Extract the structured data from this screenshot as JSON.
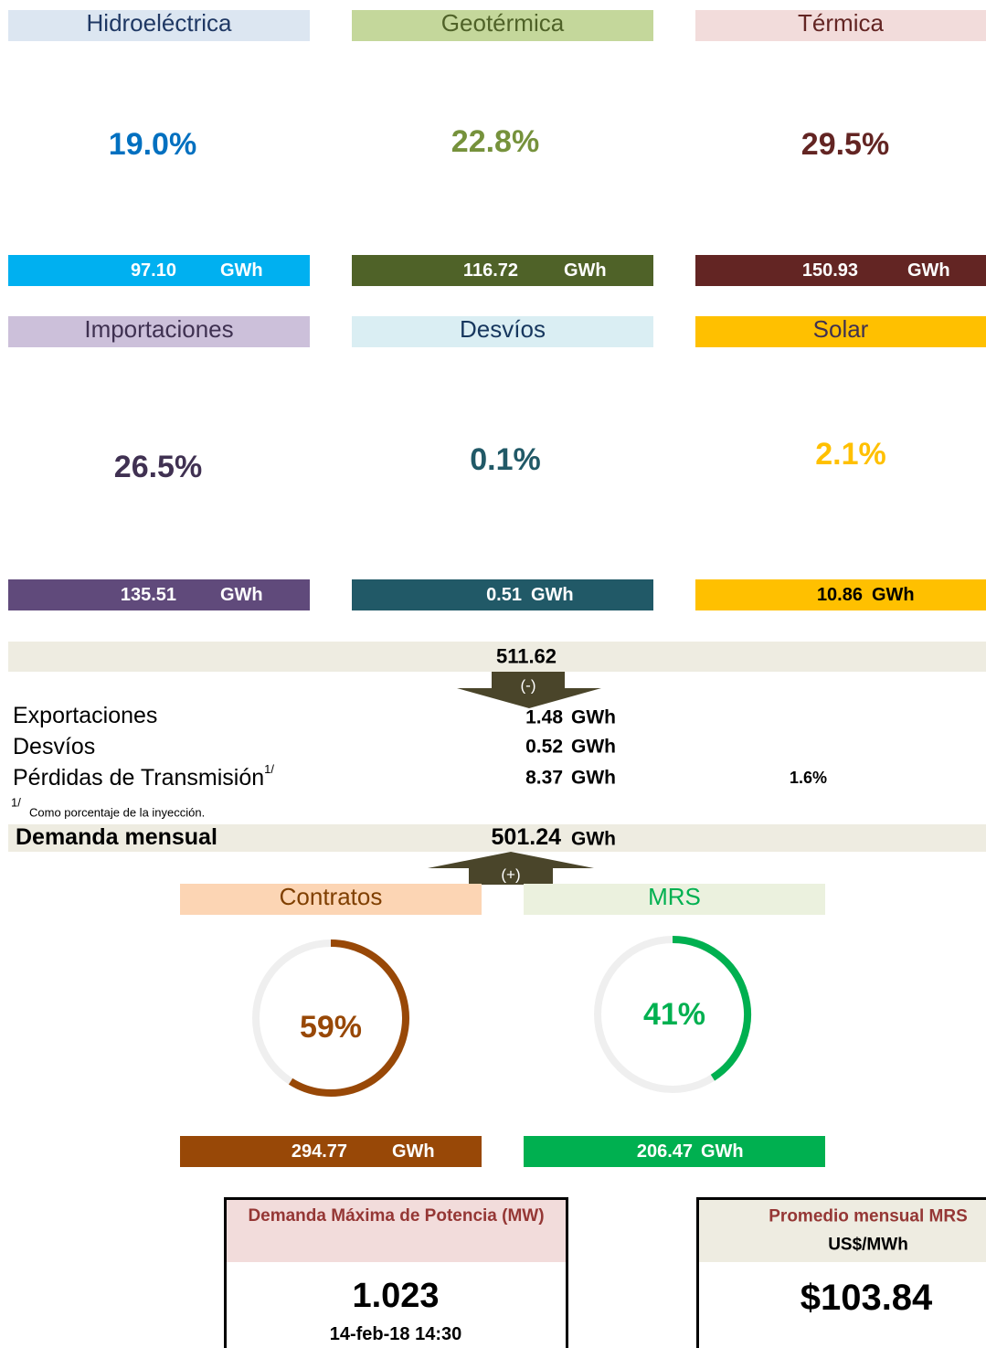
{
  "generation": [
    {
      "title": "Hidroeléctrica",
      "percent": {
        "value": 19.0,
        "label": "19.0%"
      },
      "energy": "97.10",
      "unit": "GWh"
    },
    {
      "title": "Geotérmica",
      "percent": {
        "value": 22.8,
        "label": "22.8%"
      },
      "energy": "116.72",
      "unit": "GWh"
    },
    {
      "title": "Térmica",
      "percent": {
        "value": 29.5,
        "label": "29.5%"
      },
      "energy": "150.93",
      "unit": "GWh"
    },
    {
      "title": "Importaciones",
      "percent": {
        "value": 26.5,
        "label": "26.5%"
      },
      "energy": "135.51",
      "unit": "GWh"
    },
    {
      "title": "Desvíos",
      "percent": {
        "value": 0.1,
        "label": "0.1%"
      },
      "energy": "0.51",
      "unit": "GWh"
    },
    {
      "title": "Solar",
      "percent": {
        "value": 2.1,
        "label": "2.1%"
      },
      "energy": "10.86",
      "unit": "GWh"
    }
  ],
  "injection": "511.62",
  "minus_label": "(-)",
  "deductions": [
    {
      "name": "Exportaciones",
      "value": "1.48",
      "unit": "GWh"
    },
    {
      "name": "Desvíos",
      "value": "0.52",
      "unit": "GWh"
    },
    {
      "name": "Pérdidas de Transmisión",
      "note": "1/",
      "value": "8.37",
      "unit": "GWh",
      "percent": "1.6%"
    }
  ],
  "footnote": {
    "mark": "1/",
    "text": "Como porcentaje de la inyección."
  },
  "demand": {
    "label": "Demanda mensual",
    "value": "501.24",
    "unit": "GWh"
  },
  "plus_label": "(+)",
  "supply": [
    {
      "title": "Contratos",
      "percent": {
        "value": 59,
        "label": "59%"
      },
      "energy": "294.77",
      "unit": "GWh"
    },
    {
      "title": "MRS",
      "percent": {
        "value": 41,
        "label": "41%"
      },
      "energy": "206.47",
      "unit": "GWh"
    }
  ],
  "max_demand": {
    "title": "Demanda Máxima de Potencia (MW)",
    "value": "1.023",
    "date": "14-feb-18 14:30"
  },
  "mrs_price": {
    "title": "Promedio mensual MRS",
    "unit": "US$/MWh",
    "value": "$103.84"
  }
}
